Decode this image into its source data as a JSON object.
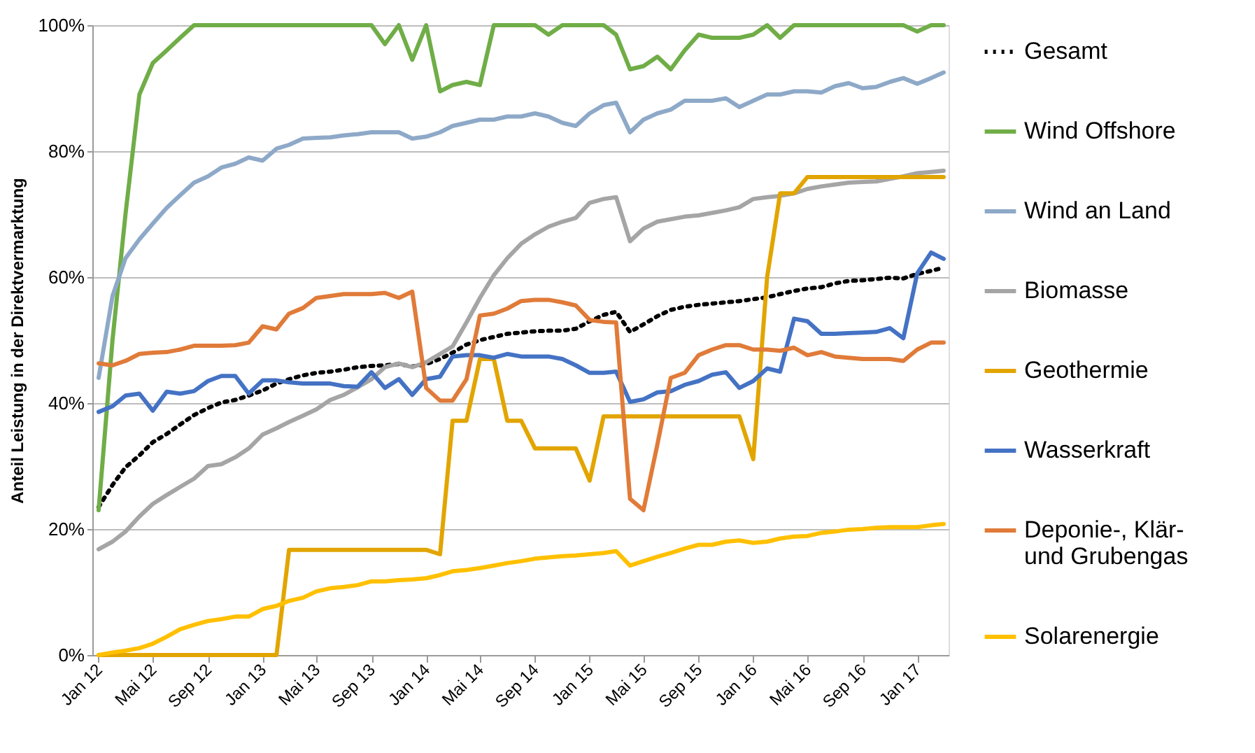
{
  "chart_data": {
    "type": "line",
    "ylabel": "Anteil Leistung in der Direktvermarktung",
    "x": [
      "2012-01",
      "2012-02",
      "2012-03",
      "2012-04",
      "2012-05",
      "2012-06",
      "2012-07",
      "2012-08",
      "2012-09",
      "2012-10",
      "2012-11",
      "2012-12",
      "2013-01",
      "2013-02",
      "2013-03",
      "2013-04",
      "2013-05",
      "2013-06",
      "2013-07",
      "2013-08",
      "2013-09",
      "2013-10",
      "2013-11",
      "2013-12",
      "2014-01",
      "2014-02",
      "2014-03",
      "2014-04",
      "2014-05",
      "2014-06",
      "2014-07",
      "2014-08",
      "2014-09",
      "2014-10",
      "2014-11",
      "2014-12",
      "2015-01",
      "2015-02",
      "2015-03",
      "2015-04",
      "2015-05",
      "2015-06",
      "2015-07",
      "2015-08",
      "2015-09",
      "2015-10",
      "2015-11",
      "2015-12",
      "2016-01",
      "2016-02",
      "2016-03",
      "2016-04",
      "2016-05",
      "2016-06",
      "2016-07",
      "2016-08",
      "2016-09",
      "2016-10",
      "2016-11",
      "2016-12",
      "2017-01",
      "2017-02",
      "2017-03"
    ],
    "xlim": [
      "2011-12-18",
      "2017-03-12"
    ],
    "xticks": [
      {
        "value": "2012-01",
        "label": "Jan 12"
      },
      {
        "value": "2012-05",
        "label": "Mai 12"
      },
      {
        "value": "2012-09",
        "label": "Sep 12"
      },
      {
        "value": "2013-01",
        "label": "Jan 13"
      },
      {
        "value": "2013-05",
        "label": "Mai 13"
      },
      {
        "value": "2013-09",
        "label": "Sep 13"
      },
      {
        "value": "2014-01",
        "label": "Jan 14"
      },
      {
        "value": "2014-05",
        "label": "Mai 14"
      },
      {
        "value": "2014-09",
        "label": "Sep 14"
      },
      {
        "value": "2015-01",
        "label": "Jan 15"
      },
      {
        "value": "2015-05",
        "label": "Mai 15"
      },
      {
        "value": "2015-09",
        "label": "Sep 15"
      },
      {
        "value": "2016-01",
        "label": "Jan 16"
      },
      {
        "value": "2016-05",
        "label": "Mai 16"
      },
      {
        "value": "2016-09",
        "label": "Sep 16"
      },
      {
        "value": "2017-01",
        "label": "Jan 17"
      }
    ],
    "ylim": [
      0,
      100
    ],
    "yticks": [
      {
        "value": 0,
        "label": "0%"
      },
      {
        "value": 20,
        "label": "20%"
      },
      {
        "value": 40,
        "label": "40%"
      },
      {
        "value": 60,
        "label": "60%"
      },
      {
        "value": 80,
        "label": "80%"
      },
      {
        "value": 100,
        "label": "100%"
      }
    ],
    "grid": "y",
    "legend": "right",
    "marker": "none",
    "line_style": "solid",
    "series": [
      {
        "name": "Gesamt",
        "color": "#000000",
        "line_style": "dotted",
        "values": [
          23.5,
          27,
          29.8,
          31.7,
          33.8,
          35.1,
          36.6,
          38.1,
          39.2,
          40.1,
          40.5,
          41.2,
          42,
          43.1,
          43.8,
          44.4,
          44.8,
          45,
          45.3,
          45.7,
          45.9,
          46,
          46.2,
          45.8,
          46.2,
          47,
          48,
          49.3,
          50,
          50.5,
          51,
          51.2,
          51.4,
          51.5,
          51.5,
          51.8,
          53,
          54,
          54.5,
          51.3,
          52.5,
          53.8,
          54.8,
          55.3,
          55.6,
          55.8,
          56,
          56.2,
          56.5,
          56.8,
          57.3,
          57.8,
          58.2,
          58.4,
          59,
          59.4,
          59.5,
          59.7,
          59.9,
          59.8,
          60.5,
          61,
          61.5
        ]
      },
      {
        "name": "Wind Offshore",
        "color": "#70ad47",
        "values": [
          23,
          50,
          70,
          89,
          94,
          96,
          98,
          100,
          100,
          100,
          100,
          100,
          100,
          100,
          100,
          100,
          100,
          100,
          100,
          100,
          100,
          97,
          100,
          94.5,
          100,
          89.5,
          90.5,
          91,
          90.5,
          100,
          100,
          100,
          100,
          98.5,
          100,
          100,
          100,
          100,
          98.5,
          93,
          93.5,
          95,
          93,
          96,
          98.5,
          98,
          98,
          98,
          98.5,
          100,
          98,
          100,
          100,
          100,
          100,
          100,
          100,
          100,
          100,
          100,
          99,
          100,
          100
        ]
      },
      {
        "name": "Wind an Land",
        "color": "#8ea9c8",
        "values": [
          44,
          57,
          63,
          66,
          68.5,
          71,
          73,
          75,
          76,
          77.4,
          78,
          79,
          78.5,
          80.4,
          81,
          82,
          82.1,
          82.2,
          82.5,
          82.7,
          83,
          83,
          83,
          82,
          82.3,
          83,
          84,
          84.5,
          85,
          85,
          85.5,
          85.5,
          86,
          85.5,
          84.5,
          84,
          86,
          87.3,
          87.7,
          83,
          85,
          86,
          86.6,
          88,
          88,
          88,
          88.4,
          87,
          88,
          89,
          89,
          89.5,
          89.5,
          89.3,
          90.3,
          90.8,
          90,
          90.2,
          91,
          91.6,
          90.7,
          91.6,
          92.5
        ]
      },
      {
        "name": "Biomasse",
        "color": "#a5a5a5",
        "values": [
          16.8,
          18,
          19.6,
          22,
          24,
          25.4,
          26.7,
          28,
          30,
          30.3,
          31.4,
          32.8,
          35,
          36,
          37,
          38,
          39,
          40.5,
          41.3,
          42.5,
          43.8,
          45.7,
          46.3,
          45.7,
          46.5,
          47.8,
          49,
          52.8,
          56.7,
          60.3,
          63,
          65.3,
          66.8,
          68,
          68.8,
          69.4,
          71.8,
          72.4,
          72.7,
          65.7,
          67.7,
          68.8,
          69.2,
          69.6,
          69.8,
          70.2,
          70.6,
          71.1,
          72.4,
          72.7,
          72.9,
          73.3,
          74,
          74.4,
          74.7,
          75,
          75.1,
          75.2,
          75.6,
          76,
          76.5,
          76.7,
          76.9
        ]
      },
      {
        "name": "Geothermie",
        "color": "#e2a500",
        "values": [
          0,
          0,
          0,
          0,
          0,
          0,
          0,
          0,
          0,
          0,
          0,
          0,
          0,
          0,
          16.7,
          16.7,
          16.7,
          16.7,
          16.7,
          16.7,
          16.7,
          16.7,
          16.7,
          16.7,
          16.7,
          16,
          37.2,
          37.2,
          47,
          47,
          37.2,
          37.2,
          32.8,
          32.8,
          32.8,
          32.8,
          27.7,
          37.9,
          37.9,
          37.9,
          37.9,
          37.9,
          37.9,
          37.9,
          37.9,
          37.9,
          37.9,
          37.9,
          31.1,
          60,
          73.3,
          73.3,
          75.9,
          75.9,
          75.9,
          75.9,
          75.9,
          75.9,
          75.9,
          75.9,
          75.9,
          75.9,
          75.9
        ]
      },
      {
        "name": "Wasserkraft",
        "color": "#4472c4",
        "values": [
          38.6,
          39.5,
          41.2,
          41.5,
          38.8,
          41.8,
          41.5,
          41.9,
          43.5,
          44.3,
          44.3,
          41.5,
          43.6,
          43.6,
          43.3,
          43.1,
          43.1,
          43.1,
          42.7,
          42.6,
          44.9,
          42.4,
          43.8,
          41.3,
          43.8,
          44.2,
          47.4,
          47.6,
          47.6,
          47.2,
          47.8,
          47.4,
          47.4,
          47.4,
          47,
          46,
          44.8,
          44.8,
          45,
          40.2,
          40.6,
          41.7,
          41.9,
          42.9,
          43.5,
          44.5,
          44.9,
          42.4,
          43.5,
          45.5,
          45,
          53.4,
          53,
          51,
          51,
          51.1,
          51.2,
          51.3,
          51.9,
          50.3,
          60.6,
          63.9,
          62.9
        ]
      },
      {
        "name": "Deponie-, Klär- und Grubengas",
        "color": "#e07b39",
        "values": [
          46.3,
          46,
          46.7,
          47.8,
          48,
          48.1,
          48.5,
          49.1,
          49.1,
          49.1,
          49.2,
          49.6,
          52.2,
          51.7,
          54.2,
          55.1,
          56.7,
          57,
          57.3,
          57.3,
          57.3,
          57.5,
          56.7,
          57.7,
          42.4,
          40.4,
          40.4,
          43.8,
          53.9,
          54.2,
          55,
          56.2,
          56.4,
          56.4,
          56,
          55.5,
          53.2,
          52.9,
          52.8,
          24.8,
          23,
          33.4,
          44,
          44.8,
          47.6,
          48.5,
          49.2,
          49.2,
          48.5,
          48.5,
          48.3,
          48.8,
          47.6,
          48.1,
          47.4,
          47.2,
          47,
          47,
          47,
          46.7,
          48.5,
          49.6,
          49.6
        ]
      },
      {
        "name": "Solarenergie",
        "color": "#ffc000",
        "values": [
          0,
          0.4,
          0.7,
          1.1,
          1.8,
          2.9,
          4.1,
          4.8,
          5.4,
          5.7,
          6.1,
          6.1,
          7.3,
          7.8,
          8.6,
          9.1,
          10.1,
          10.6,
          10.8,
          11.1,
          11.7,
          11.7,
          11.9,
          12,
          12.2,
          12.7,
          13.3,
          13.5,
          13.8,
          14.2,
          14.6,
          14.9,
          15.3,
          15.5,
          15.7,
          15.8,
          16,
          16.2,
          16.5,
          14.2,
          14.9,
          15.6,
          16.2,
          16.9,
          17.5,
          17.5,
          18,
          18.2,
          17.8,
          18,
          18.5,
          18.8,
          18.9,
          19.4,
          19.6,
          19.9,
          20,
          20.2,
          20.3,
          20.3,
          20.3,
          20.6,
          20.8
        ]
      }
    ]
  }
}
